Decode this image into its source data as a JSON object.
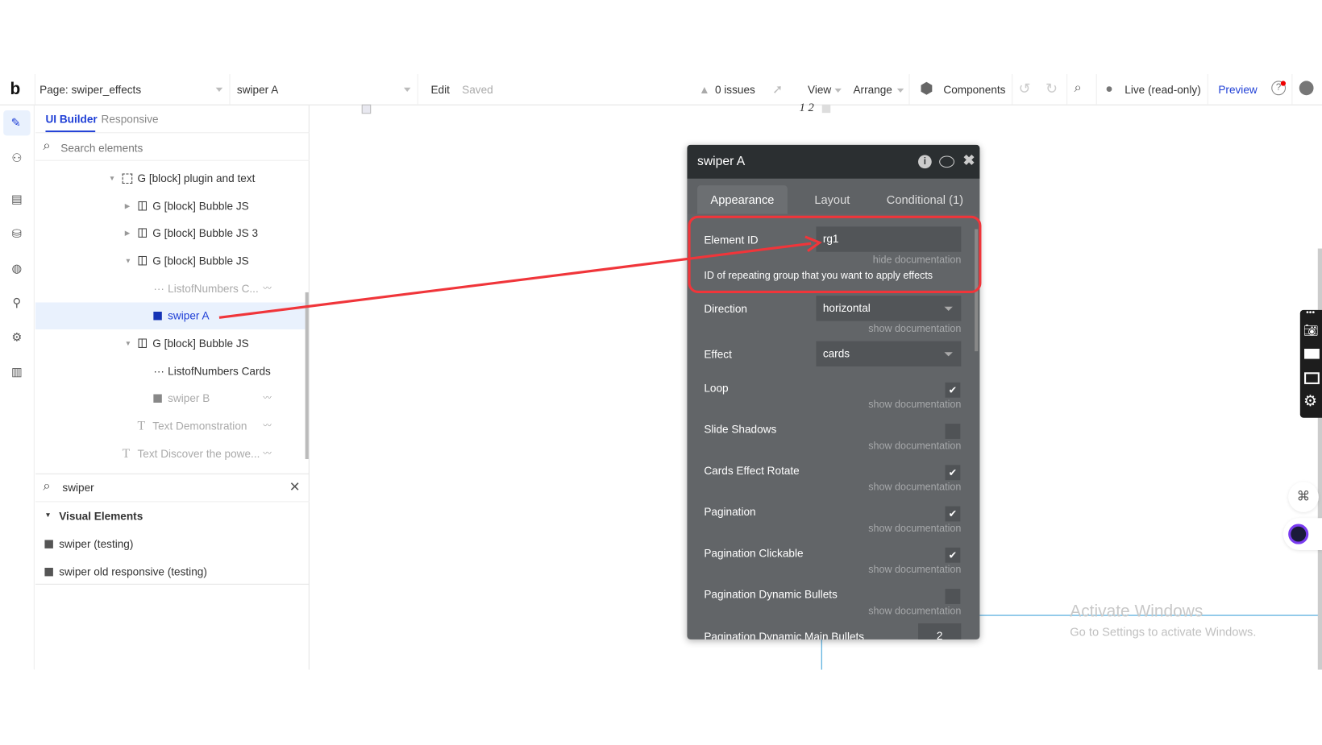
{
  "topbar": {
    "logo": "b",
    "page_label": "Page: swiper_effects",
    "element_select": "swiper A",
    "edit": "Edit",
    "saved": "Saved",
    "issues": "0 issues",
    "view": "View",
    "arrange": "Arrange",
    "components": "Components",
    "live": "Live (read-only)",
    "preview": "Preview"
  },
  "left_panel": {
    "tabs": [
      "UI Builder",
      "Responsive"
    ],
    "search_placeholder": "Search elements",
    "tree": [
      {
        "label": "G [block] plugin and text",
        "icon": "group-dashed"
      },
      {
        "label": "G [block] Bubble JS",
        "icon": "group"
      },
      {
        "label": "G [block] Bubble JS 3",
        "icon": "group"
      },
      {
        "label": "G [block] Bubble JS",
        "icon": "group"
      },
      {
        "label": "ListofNumbers C...",
        "icon": "repeating-group",
        "hidden": true
      },
      {
        "label": "swiper A",
        "icon": "plugin",
        "selected": true
      },
      {
        "label": "G [block] Bubble JS",
        "icon": "group"
      },
      {
        "label": "ListofNumbers Cards",
        "icon": "repeating-group"
      },
      {
        "label": "swiper B",
        "icon": "plugin",
        "hidden": true
      },
      {
        "label": "Text Demonstration",
        "icon": "text",
        "hidden": true
      },
      {
        "label": "Text Discover the powe...",
        "icon": "text",
        "hidden": true
      }
    ],
    "element_search": "swiper",
    "section": "Visual Elements",
    "results": [
      "swiper (testing)",
      "swiper old responsive (testing)"
    ]
  },
  "canvas": {
    "pagination_text": "1 2",
    "watermark_title": "Activate Windows",
    "watermark_sub": "Go to Settings to activate Windows."
  },
  "property_panel": {
    "title": "swiper A",
    "tabs": [
      "Appearance",
      "Layout",
      "Conditional (1)"
    ],
    "element_id": {
      "label": "Element ID",
      "value": "rg1",
      "doc_toggle": "hide documentation",
      "doc": "ID of repeating group that you want to apply effects"
    },
    "direction": {
      "label": "Direction",
      "value": "horizontal"
    },
    "effect": {
      "label": "Effect",
      "value": "cards"
    },
    "show_doc": "show documentation",
    "checkboxes": [
      {
        "label": "Loop",
        "checked": true
      },
      {
        "label": "Slide Shadows",
        "checked": false
      },
      {
        "label": "Cards Effect Rotate",
        "checked": true
      },
      {
        "label": "Pagination",
        "checked": true
      },
      {
        "label": "Pagination Clickable",
        "checked": true
      },
      {
        "label": "Pagination Dynamic Bullets",
        "checked": false
      }
    ],
    "main_bullets": {
      "label": "Pagination Dynamic Main Bullets",
      "value": "2"
    }
  },
  "colors": {
    "accent": "#1f3fd6",
    "annotation": "#f0353a",
    "panel": "#5f6265"
  }
}
